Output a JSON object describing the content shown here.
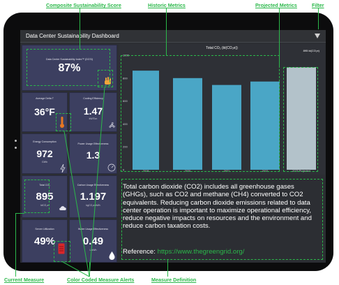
{
  "callouts": {
    "composite": "Composite Sustainability Score",
    "historic": "Historic Metrics",
    "projected": "Projected Metrics",
    "filter": "Filter",
    "current": "Current Measure",
    "color_coded": "Color Coded Measure Alerts",
    "definition": "Measure Definition"
  },
  "dashboard": {
    "title": "Data Center Sustainability Dashboard"
  },
  "composite": {
    "label": "Data Center Sustainability Index™ (DCSI)",
    "value": "87%"
  },
  "metrics": [
    {
      "label": "Average Delta T",
      "value": "36°F",
      "unit": "",
      "icon": "thermometer-icon"
    },
    {
      "label": "Cooling Efficiency",
      "value": "1.47",
      "unit": "kW/Ton",
      "icon": "fan-icon"
    },
    {
      "label": "Energy Consumption",
      "value": "972",
      "unit": "GWh",
      "icon": "lightning-icon"
    },
    {
      "label": "Power Usage Effectiveness",
      "value": "1.3",
      "unit": "",
      "icon": "gauge-icon"
    },
    {
      "label": "Total CO₂",
      "value": "895",
      "unit": "ktCO₂e",
      "icon": "cloud-icon"
    },
    {
      "label": "Carbon Usage Effectiveness",
      "value": "1.197",
      "unit": "kgCO₂e/kWh",
      "icon": ""
    },
    {
      "label": "Server Utilization",
      "value": "49%",
      "unit": "",
      "icon": "server-icon"
    },
    {
      "label": "Water Usage Effectiveness",
      "value": "0.49",
      "unit": "L/kWh",
      "icon": "water-drop-icon"
    }
  ],
  "chart_data": {
    "type": "bar",
    "title": "Total CO₂ (kt(CO₂e))",
    "categories": [
      "2018",
      "2020",
      "2021",
      "2022",
      "2023 Projected"
    ],
    "values": [
      865,
      800,
      740,
      770,
      895
    ],
    "projected_index": 4,
    "projected_label": "895 kt(CO₂e)",
    "yticks": [
      0,
      200,
      400,
      600,
      800,
      1000
    ],
    "ylim": [
      0,
      1000
    ],
    "colors": {
      "actual": "#4aa6c6",
      "projected": "#b3c2ca"
    }
  },
  "definition": {
    "text": "Total carbon dioxide (CO2) includes all greenhouse gases (GHGs), such as CO2 and methane (CH4) converted to CO2 equivalents. Reducing carbon dioxide emissions related to data center operation is important to maximize operational efficiency, reduce negative impacts on resources and the environment and reduce carbon taxation costs.",
    "reference_label": "Reference: ",
    "reference_link": "https://www.thegreengrid.org/"
  }
}
